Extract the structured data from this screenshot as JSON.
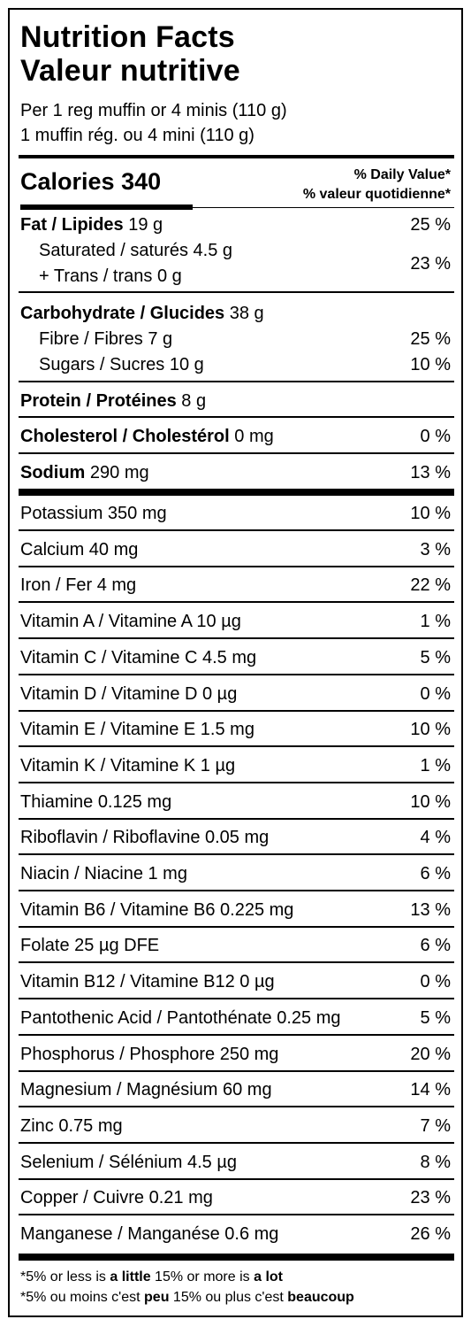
{
  "header": {
    "title_en": "Nutrition Facts",
    "title_fr": "Valeur nutritive",
    "serving_en": "Per 1 reg muffin or 4 minis (110 g)",
    "serving_fr": "1 muffin rég. ou 4 mini (110 g)"
  },
  "calories": {
    "label": "Calories",
    "value": "340"
  },
  "daily_value_header": {
    "en": "% Daily Value*",
    "fr": "% valeur quotidienne*"
  },
  "fat": {
    "label": "Fat / Lipides",
    "amount": "19 g",
    "pct": "25 %"
  },
  "saturated": {
    "label": "Saturated / saturés 4.5 g"
  },
  "trans": {
    "label": "+ Trans / trans 0 g"
  },
  "sat_trans_pct": "23 %",
  "carbohydrate": {
    "label": "Carbohydrate / Glucides",
    "amount": "38 g"
  },
  "fibre": {
    "label": "Fibre / Fibres 7 g",
    "pct": "25 %"
  },
  "sugars": {
    "label": "Sugars / Sucres 10 g",
    "pct": "10 %"
  },
  "protein": {
    "label": "Protein / Protéines",
    "amount": "8 g"
  },
  "cholesterol": {
    "label": "Cholesterol / Cholestérol",
    "amount": "0 mg",
    "pct": "0 %"
  },
  "sodium": {
    "label": "Sodium",
    "amount": "290 mg",
    "pct": "13 %"
  },
  "micronutrients": [
    {
      "label": "Potassium 350 mg",
      "pct": "10 %"
    },
    {
      "label": "Calcium 40 mg",
      "pct": "3 %"
    },
    {
      "label": "Iron / Fer 4 mg",
      "pct": "22 %"
    },
    {
      "label": "Vitamin A / Vitamine A 10 µg",
      "pct": "1 %"
    },
    {
      "label": "Vitamin C / Vitamine C 4.5 mg",
      "pct": "5 %"
    },
    {
      "label": "Vitamin D / Vitamine D 0 µg",
      "pct": "0 %"
    },
    {
      "label": "Vitamin E / Vitamine E 1.5 mg",
      "pct": "10 %"
    },
    {
      "label": "Vitamin K / Vitamine K 1 µg",
      "pct": "1 %"
    },
    {
      "label": "Thiamine 0.125 mg",
      "pct": "10 %"
    },
    {
      "label": "Riboflavin / Riboflavine 0.05 mg",
      "pct": "4 %"
    },
    {
      "label": "Niacin / Niacine 1 mg",
      "pct": "6 %"
    },
    {
      "label": "Vitamin B6 / Vitamine B6 0.225 mg",
      "pct": "13 %"
    },
    {
      "label": "Folate 25 µg DFE",
      "pct": "6 %"
    },
    {
      "label": "Vitamin B12 / Vitamine B12 0 µg",
      "pct": "0 %"
    },
    {
      "label": "Pantothenic Acid / Pantothénate 0.25 mg",
      "pct": "5 %"
    },
    {
      "label": "Phosphorus / Phosphore 250 mg",
      "pct": "20 %"
    },
    {
      "label": "Magnesium / Magnésium 60 mg",
      "pct": "14 %"
    },
    {
      "label": "Zinc 0.75 mg",
      "pct": "7 %"
    },
    {
      "label": "Selenium / Sélénium 4.5 µg",
      "pct": "8 %"
    },
    {
      "label": "Copper / Cuivre 0.21 mg",
      "pct": "23 %"
    },
    {
      "label": "Manganese / Manganése 0.6 mg",
      "pct": "26 %"
    }
  ],
  "footnote": {
    "en": {
      "a": "*5% or less is ",
      "b": "a little",
      "c": " 15% or more is ",
      "d": "a lot"
    },
    "fr": {
      "a": "*5% ou moins c'est ",
      "b": "peu",
      "c": " 15% ou plus c'est ",
      "d": "beaucoup"
    }
  }
}
